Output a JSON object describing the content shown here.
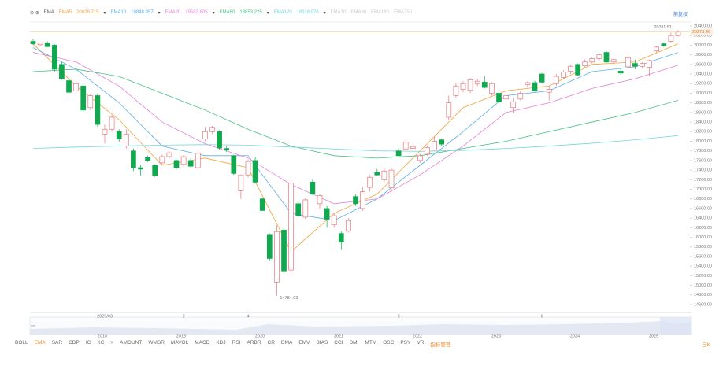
{
  "toolbar": {
    "indicator": "EMA",
    "inactive": [
      "EMA30",
      "EMA90",
      "EMA180",
      "EMA250"
    ],
    "right": "前复权"
  },
  "chart_data": {
    "type": "candlestick",
    "up_color": "#e8767a",
    "down_color": "#11a94f",
    "categories": [
      null,
      null,
      null,
      null,
      null,
      null,
      null,
      null,
      null,
      null,
      "2025/03",
      null,
      null,
      null,
      null,
      null,
      null,
      null,
      null,
      null,
      null,
      "2",
      null,
      null,
      null,
      null,
      null,
      null,
      null,
      null,
      "4",
      null,
      null,
      null,
      null,
      null,
      null,
      null,
      null,
      null,
      null,
      null,
      null,
      null,
      null,
      null,
      null,
      null,
      null,
      null,
      null,
      "5",
      null,
      null,
      null,
      null,
      null,
      null,
      null,
      null,
      null,
      null,
      null,
      null,
      null,
      null,
      null,
      null,
      null,
      null,
      null,
      "6",
      null,
      null,
      null,
      null,
      null,
      null,
      null,
      null,
      null,
      null,
      null,
      null,
      null,
      null,
      null,
      null,
      null,
      null
    ],
    "candles": [
      [
        20080,
        20120,
        20000,
        20030
      ],
      [
        20010,
        20060,
        19980,
        20050
      ],
      [
        20050,
        20080,
        19960,
        19970
      ],
      [
        20000,
        20020,
        19450,
        19500
      ],
      [
        19600,
        19650,
        19280,
        19300
      ],
      [
        19260,
        19300,
        18950,
        19020
      ],
      [
        19050,
        19250,
        19000,
        19200
      ],
      [
        19150,
        19180,
        18620,
        18650
      ],
      [
        18700,
        18980,
        18650,
        18950
      ],
      [
        18950,
        19000,
        18300,
        18350
      ],
      [
        18150,
        18350,
        17950,
        18250
      ],
      [
        18250,
        18550,
        18200,
        18500
      ],
      [
        18200,
        18250,
        17990,
        18050
      ],
      [
        17900,
        18250,
        17850,
        18150
      ],
      [
        17800,
        17850,
        17380,
        17450
      ],
      [
        17450,
        17500,
        17280,
        17420
      ],
      [
        17660,
        17700,
        17570,
        17600
      ],
      [
        17500,
        17520,
        17260,
        17280
      ],
      [
        17550,
        17720,
        17500,
        17680
      ],
      [
        17680,
        17800,
        17640,
        17760
      ],
      [
        17600,
        17620,
        17420,
        17450
      ],
      [
        17520,
        17720,
        17480,
        17680
      ],
      [
        17600,
        17650,
        17450,
        17480
      ],
      [
        17450,
        17800,
        17400,
        17750
      ],
      [
        18050,
        18300,
        18000,
        18200
      ],
      [
        18200,
        18320,
        18150,
        18290
      ],
      [
        18200,
        18230,
        17820,
        17860
      ],
      [
        17850,
        17900,
        17780,
        17820
      ],
      [
        17700,
        17720,
        17300,
        17330
      ],
      [
        16970,
        17300,
        16800,
        17300
      ],
      [
        17300,
        17620,
        17250,
        17580
      ],
      [
        17600,
        17680,
        17120,
        17150
      ],
      [
        16800,
        16820,
        16550,
        16560
      ],
      [
        16060,
        16080,
        15520,
        15560
      ],
      [
        15070,
        16250,
        14784.03,
        16120
      ],
      [
        16150,
        16200,
        15250,
        15300
      ],
      [
        15320,
        17200,
        15200,
        17130
      ],
      [
        16700,
        16750,
        16400,
        16450
      ],
      [
        16420,
        16820,
        16380,
        16780
      ],
      [
        17150,
        17200,
        16880,
        16900
      ],
      [
        16700,
        16900,
        16600,
        16870
      ],
      [
        16600,
        16650,
        16200,
        16380
      ],
      [
        16260,
        16500,
        16200,
        16450
      ],
      [
        16080,
        16120,
        15750,
        15900
      ],
      [
        16130,
        16400,
        16100,
        16350
      ],
      [
        16850,
        16900,
        16650,
        16700
      ],
      [
        16600,
        17050,
        16550,
        16950
      ],
      [
        17040,
        17300,
        16950,
        17250
      ],
      [
        17350,
        17420,
        17270,
        17300
      ],
      [
        17200,
        17450,
        17150,
        17380
      ],
      [
        17030,
        17450,
        16950,
        17400
      ],
      [
        17800,
        17850,
        17680,
        17700
      ],
      [
        17840,
        18050,
        17800,
        17980
      ],
      [
        17850,
        17930,
        17830,
        17890
      ],
      [
        17600,
        17740,
        17550,
        17700
      ],
      [
        17730,
        17900,
        17700,
        17870
      ],
      [
        17820,
        18090,
        17800,
        18000
      ],
      [
        18030,
        18060,
        17900,
        17940
      ],
      [
        18500,
        18950,
        18450,
        18800
      ],
      [
        18950,
        19220,
        18900,
        19150
      ],
      [
        19080,
        19250,
        19020,
        19200
      ],
      [
        19060,
        19320,
        19000,
        19280
      ],
      [
        19200,
        19300,
        19150,
        19250
      ],
      [
        19230,
        19350,
        19100,
        19120
      ],
      [
        19000,
        19230,
        18950,
        19200
      ],
      [
        19000,
        19050,
        18780,
        18820
      ],
      [
        18880,
        18980,
        18850,
        18950
      ],
      [
        18700,
        18900,
        18580,
        18820
      ],
      [
        18880,
        19050,
        18850,
        19000
      ],
      [
        19180,
        19250,
        19120,
        19220
      ],
      [
        19220,
        19260,
        19030,
        19050
      ],
      [
        19400,
        19420,
        19200,
        19230
      ],
      [
        19020,
        19150,
        18850,
        19080
      ],
      [
        19200,
        19400,
        19150,
        19350
      ],
      [
        19330,
        19480,
        19300,
        19440
      ],
      [
        19460,
        19600,
        19400,
        19560
      ],
      [
        19600,
        19620,
        19360,
        19380
      ],
      [
        19570,
        19700,
        19520,
        19650
      ],
      [
        19650,
        19750,
        19620,
        19720
      ],
      [
        19720,
        19820,
        19680,
        19800
      ],
      [
        19850,
        19880,
        19630,
        19650
      ],
      [
        19650,
        19720,
        19600,
        19700
      ],
      [
        19460,
        19520,
        19380,
        19420
      ],
      [
        19550,
        19780,
        19520,
        19740
      ],
      [
        19620,
        19700,
        19500,
        19560
      ],
      [
        19560,
        19650,
        19520,
        19620
      ],
      [
        19540,
        19700,
        19350,
        19680
      ],
      [
        19880,
        19980,
        19850,
        19960
      ],
      [
        20030,
        20060,
        19970,
        19990
      ],
      [
        20080,
        20260,
        20060,
        20200
      ],
      [
        20200,
        20311.51,
        20180,
        20273.46
      ]
    ],
    "x": [
      0,
      6,
      12,
      18,
      24,
      30,
      36,
      42,
      48,
      54,
      60,
      66,
      72,
      78,
      84,
      90
    ],
    "series": [
      {
        "name": "EMA5",
        "color": "#f0a33c",
        "values": [
          20030,
          19150,
          18450,
          17500,
          17650,
          17450,
          15700,
          16500,
          16900,
          17800,
          18700,
          19050,
          19150,
          19600,
          19650,
          20028.715
        ]
      },
      {
        "name": "EMA10",
        "color": "#5aaee8",
        "values": [
          19950,
          19500,
          18800,
          17900,
          17700,
          17700,
          16500,
          16350,
          16800,
          17500,
          18200,
          18950,
          19050,
          19450,
          19550,
          19848.957
        ]
      },
      {
        "name": "EMA20",
        "color": "#e47fd6",
        "values": [
          19850,
          19650,
          19150,
          18400,
          17950,
          17650,
          17100,
          16700,
          16800,
          17300,
          17900,
          18600,
          18800,
          19100,
          19300,
          19582.805
        ]
      },
      {
        "name": "EMA60",
        "color": "#45c084",
        "values": [
          19450,
          19500,
          19350,
          19000,
          18650,
          18250,
          17900,
          17700,
          17650,
          17700,
          17850,
          18000,
          18200,
          18400,
          18600,
          18853.225
        ]
      },
      {
        "name": "EMA120",
        "color": "#72d6df",
        "values": [
          17850,
          17880,
          17900,
          17920,
          17930,
          17920,
          17880,
          17840,
          17800,
          17790,
          17810,
          17850,
          17900,
          17960,
          18030,
          18118.976
        ]
      }
    ],
    "ylim": [
      14600,
      20400
    ],
    "yticks": [
      {
        "value": 14600,
        "label": "14600.00"
      },
      {
        "value": 14800,
        "label": "14800.00"
      },
      {
        "value": 15000,
        "label": "15000.00"
      },
      {
        "value": 15200,
        "label": "15200.00"
      },
      {
        "value": 15400,
        "label": "15400.00"
      },
      {
        "value": 15600,
        "label": "15600.00"
      },
      {
        "value": 15800,
        "label": "15800.00"
      },
      {
        "value": 16000,
        "label": "16000.00"
      },
      {
        "value": 16200,
        "label": "16200.00"
      },
      {
        "value": 16400,
        "label": "16400.00"
      },
      {
        "value": 16600,
        "label": "16600.00"
      },
      {
        "value": 16800,
        "label": "16800.00"
      },
      {
        "value": 17000,
        "label": "17000.00"
      },
      {
        "value": 17200,
        "label": "17200.00"
      },
      {
        "value": 17400,
        "label": "17400.00"
      },
      {
        "value": 17600,
        "label": "17600.00"
      },
      {
        "value": 17800,
        "label": "17800.00"
      },
      {
        "value": 18000,
        "label": "18000.00"
      },
      {
        "value": 18200,
        "label": "18200.00"
      },
      {
        "value": 18400,
        "label": "18400.00"
      },
      {
        "value": 18600,
        "label": "18600.00"
      },
      {
        "value": 18800,
        "label": "18800.00"
      },
      {
        "value": 19000,
        "label": "19000.00"
      },
      {
        "value": 19200,
        "label": "19200.00"
      },
      {
        "value": 19400,
        "label": "19400.00"
      },
      {
        "value": 19600,
        "label": "19600.00"
      },
      {
        "value": 19800,
        "label": "19800.00"
      },
      {
        "value": 20000,
        "label": "20000.00"
      },
      {
        "value": 20200,
        "label": "20200.00"
      },
      {
        "value": 20400,
        "label": "20400.00"
      }
    ]
  },
  "navigator": {
    "years": [
      "2018",
      "2019",
      "2020",
      "2021",
      "2022",
      "2023",
      "2024",
      "2025"
    ]
  },
  "indicators": [
    "BOLL",
    "EMA",
    "SAR",
    "CDP",
    "IC",
    "KC",
    ">",
    "AMOUNT",
    "WMSR",
    "MAVOL",
    "MACD",
    "KDJ",
    "RSI",
    "ARBR",
    "CR",
    "DMA",
    "EMV",
    "BIAS",
    "CCI",
    "DMI",
    "MTM",
    "OSC",
    "PSY",
    "VR",
    "指标管理"
  ],
  "period": "日K"
}
